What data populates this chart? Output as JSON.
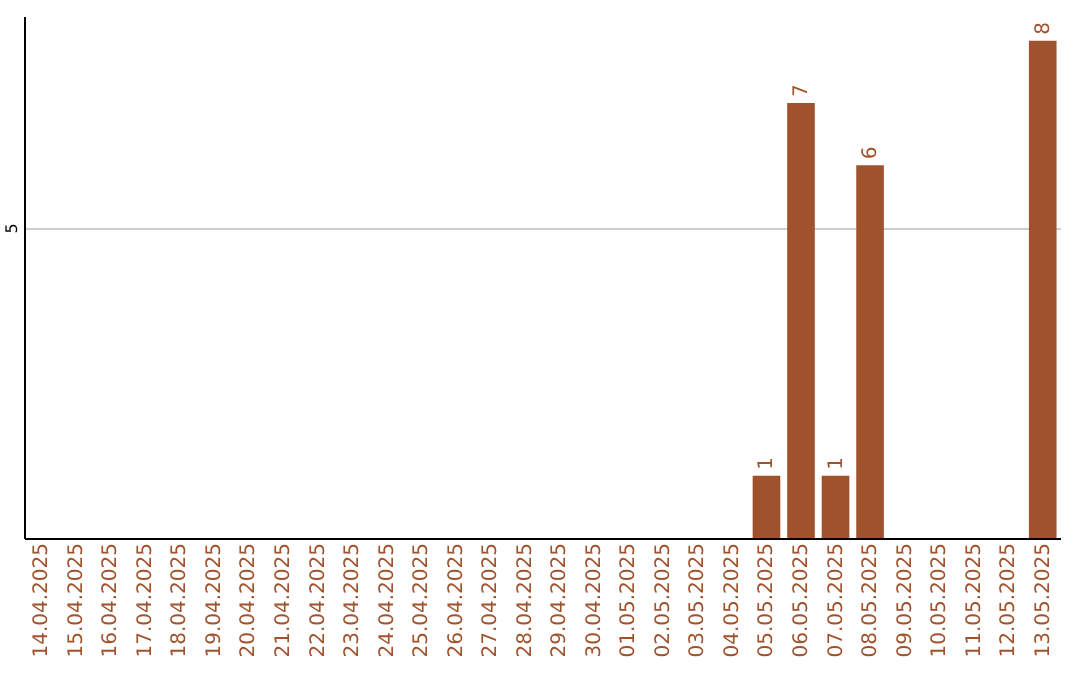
{
  "chart_data": {
    "type": "bar",
    "categories": [
      "14.04.2025",
      "15.04.2025",
      "16.04.2025",
      "17.04.2025",
      "18.04.2025",
      "19.04.2025",
      "20.04.2025",
      "21.04.2025",
      "22.04.2025",
      "23.04.2025",
      "24.04.2025",
      "25.04.2025",
      "26.04.2025",
      "27.04.2025",
      "28.04.2025",
      "29.04.2025",
      "30.04.2025",
      "01.05.2025",
      "02.05.2025",
      "03.05.2025",
      "04.05.2025",
      "05.05.2025",
      "06.05.2025",
      "07.05.2025",
      "08.05.2025",
      "09.05.2025",
      "10.05.2025",
      "11.05.2025",
      "12.05.2025",
      "13.05.2025"
    ],
    "values": [
      null,
      null,
      null,
      null,
      null,
      null,
      null,
      null,
      null,
      null,
      null,
      null,
      null,
      null,
      null,
      null,
      null,
      null,
      null,
      null,
      null,
      1,
      7,
      1,
      6,
      null,
      null,
      null,
      null,
      8
    ],
    "data_labels": true,
    "ylim": [
      0,
      8.4
    ],
    "color": "#a0522d",
    "yticks": [
      5
    ],
    "grid": "y"
  }
}
